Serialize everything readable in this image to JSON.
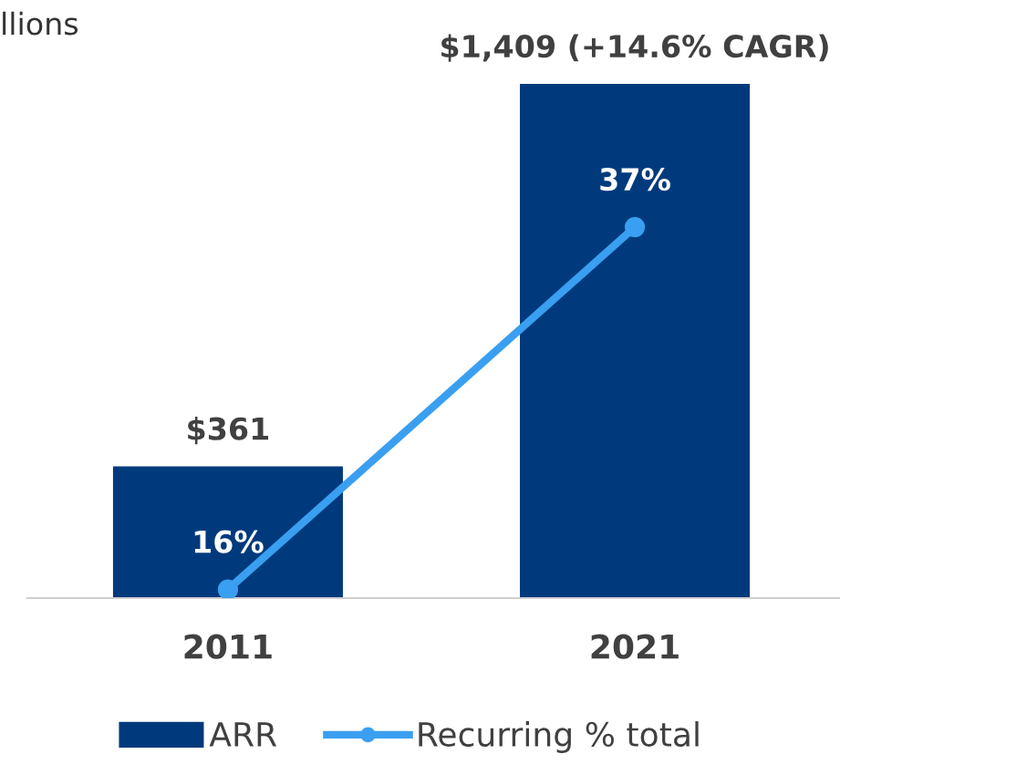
{
  "chart_data": {
    "type": "bar",
    "title": "llions",
    "ylim": [
      0,
      1409
    ],
    "categories": [
      "2011",
      "2021"
    ],
    "series": [
      {
        "name": "ARR",
        "color": "#003a7d",
        "values": [
          361,
          1409
        ],
        "value_labels": [
          "$361",
          "$1,409 (+14.6% CAGR)"
        ]
      },
      {
        "name": "Recurring % total",
        "type": "line",
        "axis": "y2",
        "color": "#3a9ff0",
        "values": [
          16,
          37
        ],
        "value_labels": [
          "16%",
          "37%"
        ],
        "marker": "circle"
      }
    ],
    "y2lim": [
      15.5,
      45.3
    ],
    "legend": "bottom",
    "grid": false
  }
}
